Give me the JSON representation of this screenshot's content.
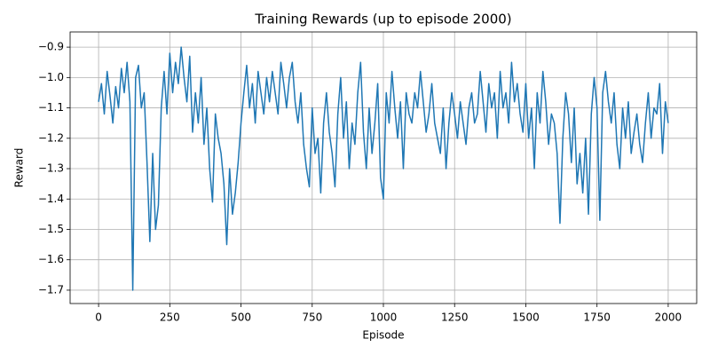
{
  "chart_data": {
    "type": "line",
    "title": "Training Rewards (up to episode 2000)",
    "x_label": "Episode",
    "y_label": "Reward",
    "x": [
      0,
      10,
      20,
      30,
      40,
      50,
      60,
      70,
      80,
      90,
      100,
      110,
      120,
      130,
      140,
      150,
      160,
      170,
      180,
      190,
      200,
      210,
      220,
      230,
      240,
      250,
      260,
      270,
      280,
      290,
      300,
      310,
      320,
      330,
      340,
      350,
      360,
      370,
      380,
      390,
      400,
      410,
      420,
      430,
      440,
      450,
      460,
      470,
      480,
      490,
      500,
      510,
      520,
      530,
      540,
      550,
      560,
      570,
      580,
      590,
      600,
      610,
      620,
      630,
      640,
      650,
      660,
      670,
      680,
      690,
      700,
      710,
      720,
      730,
      740,
      750,
      760,
      770,
      780,
      790,
      800,
      810,
      820,
      830,
      840,
      850,
      860,
      870,
      880,
      890,
      900,
      910,
      920,
      930,
      940,
      950,
      960,
      970,
      980,
      990,
      1000,
      1010,
      1020,
      1030,
      1040,
      1050,
      1060,
      1070,
      1080,
      1090,
      1100,
      1110,
      1120,
      1130,
      1140,
      1150,
      1160,
      1170,
      1180,
      1190,
      1200,
      1210,
      1220,
      1230,
      1240,
      1250,
      1260,
      1270,
      1280,
      1290,
      1300,
      1310,
      1320,
      1330,
      1340,
      1350,
      1360,
      1370,
      1380,
      1390,
      1400,
      1410,
      1420,
      1430,
      1440,
      1450,
      1460,
      1470,
      1480,
      1490,
      1500,
      1510,
      1520,
      1530,
      1540,
      1550,
      1560,
      1570,
      1580,
      1590,
      1600,
      1610,
      1620,
      1630,
      1640,
      1650,
      1660,
      1670,
      1680,
      1690,
      1700,
      1710,
      1720,
      1730,
      1740,
      1750,
      1760,
      1770,
      1780,
      1790,
      1800,
      1810,
      1820,
      1830,
      1840,
      1850,
      1860,
      1870,
      1880,
      1890,
      1900,
      1910,
      1920,
      1930,
      1940,
      1950,
      1960,
      1970,
      1980,
      1990,
      2000
    ],
    "values": [
      -1.08,
      -1.02,
      -1.12,
      -0.98,
      -1.06,
      -1.15,
      -1.03,
      -1.1,
      -0.97,
      -1.05,
      -0.95,
      -1.08,
      -1.7,
      -1.0,
      -0.96,
      -1.1,
      -1.05,
      -1.28,
      -1.54,
      -1.25,
      -1.5,
      -1.42,
      -1.1,
      -0.98,
      -1.12,
      -0.92,
      -1.05,
      -0.95,
      -1.02,
      -0.9,
      -1.0,
      -1.08,
      -0.93,
      -1.18,
      -1.05,
      -1.15,
      -1.0,
      -1.22,
      -1.1,
      -1.3,
      -1.41,
      -1.12,
      -1.2,
      -1.25,
      -1.35,
      -1.55,
      -1.3,
      -1.45,
      -1.38,
      -1.28,
      -1.15,
      -1.05,
      -0.96,
      -1.1,
      -1.02,
      -1.15,
      -0.98,
      -1.05,
      -1.12,
      -1.0,
      -1.08,
      -0.98,
      -1.05,
      -1.12,
      -0.95,
      -1.02,
      -1.1,
      -1.0,
      -0.95,
      -1.08,
      -1.15,
      -1.05,
      -1.22,
      -1.3,
      -1.36,
      -1.1,
      -1.25,
      -1.2,
      -1.38,
      -1.15,
      -1.05,
      -1.18,
      -1.25,
      -1.36,
      -1.12,
      -1.0,
      -1.2,
      -1.08,
      -1.3,
      -1.15,
      -1.22,
      -1.05,
      -0.95,
      -1.18,
      -1.3,
      -1.1,
      -1.25,
      -1.15,
      -1.02,
      -1.33,
      -1.4,
      -1.05,
      -1.15,
      -0.98,
      -1.1,
      -1.2,
      -1.08,
      -1.3,
      -1.05,
      -1.12,
      -1.15,
      -1.05,
      -1.1,
      -0.98,
      -1.08,
      -1.18,
      -1.12,
      -1.02,
      -1.15,
      -1.2,
      -1.25,
      -1.1,
      -1.3,
      -1.15,
      -1.05,
      -1.12,
      -1.2,
      -1.08,
      -1.15,
      -1.22,
      -1.1,
      -1.05,
      -1.15,
      -1.12,
      -0.98,
      -1.08,
      -1.18,
      -1.02,
      -1.1,
      -1.05,
      -1.2,
      -0.98,
      -1.1,
      -1.05,
      -1.15,
      -0.95,
      -1.08,
      -1.02,
      -1.12,
      -1.18,
      -1.02,
      -1.2,
      -1.1,
      -1.3,
      -1.05,
      -1.15,
      -0.98,
      -1.08,
      -1.22,
      -1.12,
      -1.15,
      -1.25,
      -1.48,
      -1.2,
      -1.05,
      -1.12,
      -1.28,
      -1.1,
      -1.35,
      -1.25,
      -1.38,
      -1.2,
      -1.45,
      -1.12,
      -1.0,
      -1.1,
      -1.47,
      -1.05,
      -0.98,
      -1.08,
      -1.15,
      -1.05,
      -1.22,
      -1.3,
      -1.1,
      -1.2,
      -1.08,
      -1.25,
      -1.18,
      -1.12,
      -1.22,
      -1.28,
      -1.15,
      -1.05,
      -1.2,
      -1.1,
      -1.12,
      -1.02,
      -1.25,
      -1.08,
      -1.15
    ],
    "color": "#1f77b4",
    "xlim": [
      -100,
      2100
    ],
    "ylim": [
      -1.744,
      -0.85
    ],
    "xticks": [
      0,
      250,
      500,
      750,
      1000,
      1250,
      1500,
      1750,
      2000
    ],
    "yticks": [
      {
        "value": -1.7,
        "label": "−1.7"
      },
      {
        "value": -1.6,
        "label": "−1.6"
      },
      {
        "value": -1.5,
        "label": "−1.5"
      },
      {
        "value": -1.4,
        "label": "−1.4"
      },
      {
        "value": -1.3,
        "label": "−1.3"
      },
      {
        "value": -1.2,
        "label": "−1.2"
      },
      {
        "value": -1.1,
        "label": "−1.1"
      },
      {
        "value": -1.0,
        "label": "−1.0"
      },
      {
        "value": -0.9,
        "label": "−0.9"
      }
    ],
    "grid": true
  }
}
